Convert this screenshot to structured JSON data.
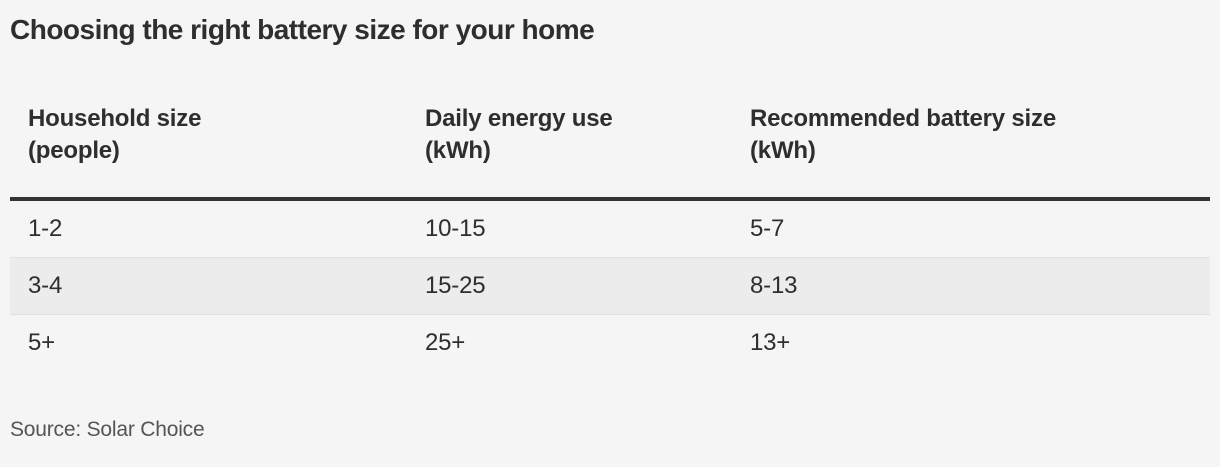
{
  "page": {
    "title": "Choosing the right battery size for your home",
    "source": "Source: Solar Choice"
  },
  "table": {
    "headers": [
      {
        "label": "Household size",
        "unit": "(people)"
      },
      {
        "label": "Daily energy use",
        "unit": "(kWh)"
      },
      {
        "label": "Recommended battery size",
        "unit": "(kWh)"
      }
    ],
    "rows": [
      [
        "1-2",
        "10-15",
        "5-7"
      ],
      [
        "3-4",
        "15-25",
        "8-13"
      ],
      [
        "5+",
        "25+",
        "13+"
      ]
    ]
  },
  "colors": {
    "background": "#f5f5f5",
    "text": "#2e2e2e",
    "stripe_row": "#ececec",
    "row_divider": "#e0e0e0",
    "header_rule": "#333333",
    "source_text": "#555555"
  },
  "chart_data": {
    "type": "table",
    "title": "Choosing the right battery size for your home",
    "columns": [
      "Household size (people)",
      "Daily energy use (kWh)",
      "Recommended battery size (kWh)"
    ],
    "rows": [
      [
        "1-2",
        "10-15",
        "5-7"
      ],
      [
        "3-4",
        "15-25",
        "8-13"
      ],
      [
        "5+",
        "25+",
        "13+"
      ]
    ],
    "source": "Source: Solar Choice",
    "layout": {
      "striped_row_index": 1,
      "header_rule": "thick-dark",
      "grid": "horizontal-dividers-only"
    }
  }
}
